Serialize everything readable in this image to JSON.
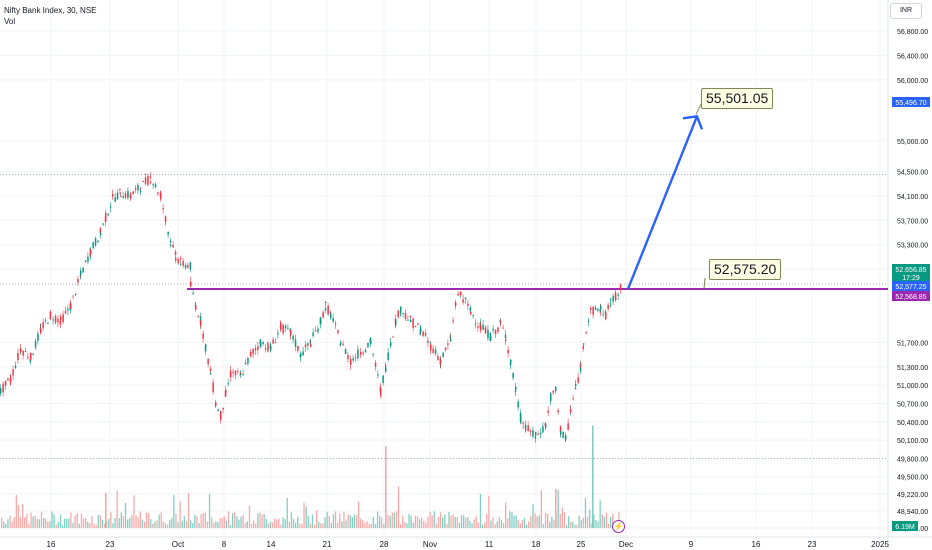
{
  "header": {
    "symbol_line": "Nifty Bank Index, 30, NSE",
    "vol_label": "Vol"
  },
  "currency_button": "INR",
  "chart_data": {
    "type": "candlestick",
    "symbol": "Nifty Bank Index",
    "interval": "30",
    "exchange": "NSE",
    "y_ticks": [
      56800,
      56400,
      56000,
      55000,
      54500,
      54100,
      53700,
      53300,
      52900,
      51700,
      51300,
      51000,
      50700,
      50400,
      50100,
      49800,
      49500,
      49220,
      48940,
      48660
    ],
    "y_tick_labels": [
      "56,800.00",
      "56,400.00",
      "56,000.00",
      "55,000.00",
      "54,500.00",
      "54,100.00",
      "53,700.00",
      "53,300.00",
      "52,900.00",
      "51,700.00",
      "51,300.00",
      "51,000.00",
      "50,700.00",
      "50,400.00",
      "50,100.00",
      "49,800.00",
      "49,500.00",
      "49,220.00",
      "48,940.00",
      "48,660.00"
    ],
    "x_tick_labels": [
      "16",
      "23",
      "Oct",
      "8",
      "14",
      "21",
      "28",
      "Nov",
      "11",
      "18",
      "25",
      "Dec",
      "9",
      "16",
      "23",
      "2025"
    ],
    "price_path": [
      [
        0,
        50900
      ],
      [
        10,
        51100
      ],
      [
        20,
        51600
      ],
      [
        30,
        51450
      ],
      [
        40,
        51900
      ],
      [
        50,
        52150
      ],
      [
        60,
        52050
      ],
      [
        70,
        52300
      ],
      [
        80,
        52800
      ],
      [
        90,
        53200
      ],
      [
        100,
        53500
      ],
      [
        105,
        53750
      ],
      [
        112,
        54050
      ],
      [
        120,
        54150
      ],
      [
        130,
        54100
      ],
      [
        140,
        54250
      ],
      [
        150,
        54400
      ],
      [
        160,
        54100
      ],
      [
        165,
        53700
      ],
      [
        170,
        53350
      ],
      [
        175,
        53100
      ],
      [
        180,
        53000
      ],
      [
        190,
        52950
      ],
      [
        190,
        52620
      ],
      [
        195,
        52300
      ],
      [
        200,
        52050
      ],
      [
        205,
        51600
      ],
      [
        210,
        51200
      ],
      [
        215,
        50700
      ],
      [
        220,
        50500
      ],
      [
        225,
        50850
      ],
      [
        230,
        51200
      ],
      [
        240,
        51150
      ],
      [
        250,
        51500
      ],
      [
        260,
        51700
      ],
      [
        270,
        51600
      ],
      [
        280,
        51950
      ],
      [
        290,
        51850
      ],
      [
        300,
        51500
      ],
      [
        310,
        51700
      ],
      [
        320,
        52050
      ],
      [
        325,
        52300
      ],
      [
        330,
        52150
      ],
      [
        340,
        51700
      ],
      [
        350,
        51400
      ],
      [
        360,
        51550
      ],
      [
        370,
        51700
      ],
      [
        380,
        50900
      ],
      [
        385,
        51300
      ],
      [
        390,
        51700
      ],
      [
        395,
        52050
      ],
      [
        400,
        52250
      ],
      [
        410,
        52050
      ],
      [
        420,
        51900
      ],
      [
        430,
        51650
      ],
      [
        440,
        51400
      ],
      [
        450,
        51750
      ],
      [
        455,
        52350
      ],
      [
        460,
        52500
      ],
      [
        470,
        52200
      ],
      [
        480,
        51950
      ],
      [
        490,
        51800
      ],
      [
        500,
        52000
      ],
      [
        505,
        51800
      ],
      [
        510,
        51350
      ],
      [
        515,
        50900
      ],
      [
        520,
        50450
      ],
      [
        525,
        50300
      ],
      [
        535,
        50150
      ],
      [
        545,
        50350
      ],
      [
        550,
        50800
      ],
      [
        555,
        50900
      ],
      [
        560,
        50250
      ],
      [
        565,
        50100
      ],
      [
        570,
        50600
      ],
      [
        575,
        50950
      ],
      [
        580,
        51300
      ],
      [
        583,
        51750
      ],
      [
        590,
        52200
      ],
      [
        600,
        52250
      ],
      [
        605,
        52150
      ],
      [
        610,
        52350
      ],
      [
        615,
        52450
      ],
      [
        620,
        52640
      ]
    ],
    "volumes": {
      "baseline": 48660,
      "spikes": [
        [
          105,
          49230
        ],
        [
          385,
          50000
        ],
        [
          555,
          49300
        ],
        [
          592,
          50340
        ]
      ]
    },
    "horizontal_lines": [
      {
        "price": 54450,
        "style": "dotted"
      },
      {
        "price": 52656.85,
        "style": "dotted"
      },
      {
        "price": 52575.2,
        "style": "solid",
        "color": "#9c27b0"
      },
      {
        "price": 49800,
        "style": "dotted"
      }
    ],
    "arrow": {
      "from_price": 52575.2,
      "to_price": 55501.05,
      "color": "#2962ff"
    },
    "callouts": [
      {
        "label": "55,501.05",
        "price": 55501.05
      },
      {
        "label": "52,575.20",
        "price": 52575.2
      }
    ],
    "price_labels": [
      {
        "text": "55,496.70",
        "price": 55496.7,
        "color": "#2962ff"
      },
      {
        "text": "52,656.85",
        "price": 52656.85,
        "color": "#089981"
      },
      {
        "text": "17:29",
        "price": 52616,
        "color": "#089981"
      },
      {
        "text": "52,577.25",
        "price": 52577.25,
        "color": "#2962ff"
      },
      {
        "text": "52,568.85",
        "price": 52568.85,
        "color": "#9c27b0"
      }
    ],
    "volume_label": {
      "text": "6.19M",
      "color": "#089981"
    }
  }
}
